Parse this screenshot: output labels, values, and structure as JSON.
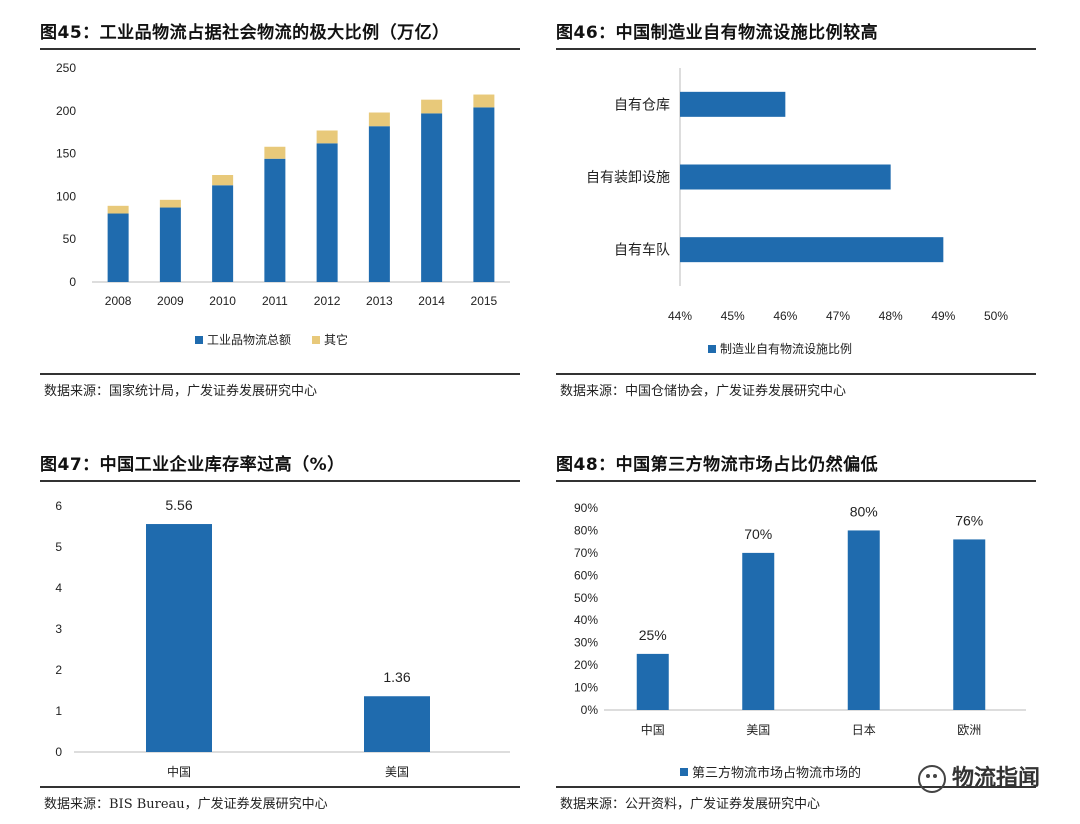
{
  "watermark": "物流指闻",
  "chart_data": [
    {
      "id": "fig45",
      "type": "bar",
      "stacked": true,
      "title": "图45：工业品物流占据社会物流的极大比例（万亿）",
      "categories": [
        "2008",
        "2009",
        "2010",
        "2011",
        "2012",
        "2013",
        "2014",
        "2015"
      ],
      "series": [
        {
          "name": "工业品物流总额",
          "color": "#1F6BAE",
          "values": [
            80,
            87,
            113,
            144,
            162,
            182,
            197,
            204
          ]
        },
        {
          "name": "其它",
          "color": "#E8C97A",
          "values": [
            9,
            9,
            12,
            14,
            15,
            16,
            16,
            15
          ]
        }
      ],
      "ylim": [
        0,
        250
      ],
      "yticks": [
        0,
        50,
        100,
        150,
        200,
        250
      ],
      "legend": "bottom",
      "source": "数据来源：国家统计局，广发证券发展研究中心"
    },
    {
      "id": "fig46",
      "type": "bar",
      "orientation": "horizontal",
      "title": "图46：中国制造业自有物流设施比例较高",
      "categories": [
        "自有仓库",
        "自有装卸设施",
        "自有车队"
      ],
      "series": [
        {
          "name": "制造业自有物流设施比例",
          "color": "#1F6BAE",
          "values": [
            46,
            48,
            49
          ]
        }
      ],
      "xlim": [
        44,
        50
      ],
      "xticks": [
        "44%",
        "45%",
        "46%",
        "47%",
        "48%",
        "49%",
        "50%"
      ],
      "legend": "bottom",
      "source": "数据来源：中国仓储协会，广发证券发展研究中心"
    },
    {
      "id": "fig47",
      "type": "bar",
      "title": "图47：中国工业企业库存率过高（%）",
      "categories": [
        "中国",
        "美国"
      ],
      "series": [
        {
          "color": "#1F6BAE",
          "values": [
            5.56,
            1.36
          ]
        }
      ],
      "data_labels": [
        "5.56",
        "1.36"
      ],
      "ylim": [
        0,
        6
      ],
      "yticks": [
        0,
        1,
        2,
        3,
        4,
        5,
        6
      ],
      "source": "数据来源：BIS Bureau，广发证券发展研究中心"
    },
    {
      "id": "fig48",
      "type": "bar",
      "title": "图48：中国第三方物流市场占比仍然偏低",
      "categories": [
        "中国",
        "美国",
        "日本",
        "欧洲"
      ],
      "series": [
        {
          "name": "第三方物流市场占物流市场的",
          "color": "#1F6BAE",
          "values": [
            25,
            70,
            80,
            76
          ]
        }
      ],
      "data_labels": [
        "25%",
        "70%",
        "80%",
        "76%"
      ],
      "ylim": [
        0,
        90
      ],
      "yticks": [
        "0%",
        "10%",
        "20%",
        "30%",
        "40%",
        "50%",
        "60%",
        "70%",
        "80%",
        "90%"
      ],
      "legend": "bottom",
      "source": "数据来源：公开资料，广发证券发展研究中心"
    }
  ]
}
